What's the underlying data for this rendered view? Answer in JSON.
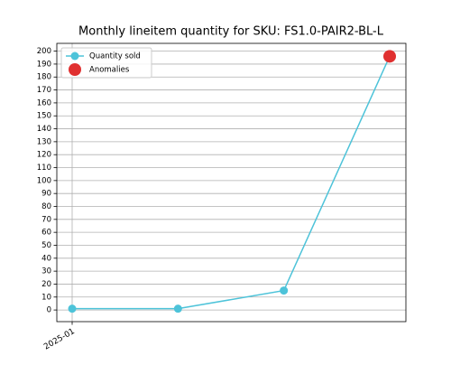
{
  "chart_data": {
    "type": "line",
    "title": "Monthly lineitem quantity for SKU: FS1.0-PAIR2-BL-L",
    "categories": [
      "2025-01",
      null,
      null,
      null
    ],
    "series": [
      {
        "name": "Quantity sold",
        "color": "#4dc3d9",
        "values": [
          1,
          1,
          15,
          196
        ],
        "marker": "small"
      },
      {
        "name": "Anomalies",
        "color": "#e03030",
        "values": [
          null,
          null,
          null,
          196
        ],
        "marker": "large",
        "line": false
      }
    ],
    "ylim": [
      -9,
      206
    ],
    "yticks": [
      0,
      10,
      20,
      30,
      40,
      50,
      60,
      70,
      80,
      90,
      100,
      110,
      120,
      130,
      140,
      150,
      160,
      170,
      180,
      190,
      200
    ],
    "grid": true,
    "legend": "upper left"
  }
}
